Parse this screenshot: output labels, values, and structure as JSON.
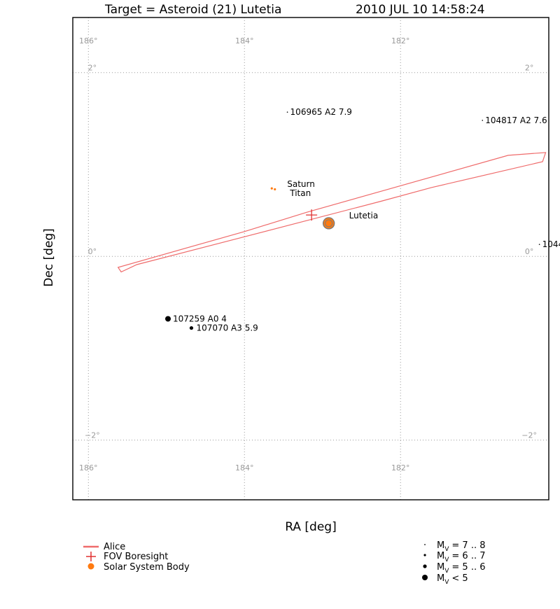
{
  "title": {
    "target": "Target = Asteroid (21) Lutetia",
    "datetime": "2010 JUL 10 14:58:24"
  },
  "axes": {
    "xlabel": "RA [deg]",
    "ylabel": "Dec [deg]",
    "ra_range": [
      186.2,
      180.1
    ],
    "dec_range": [
      -2.65,
      2.6
    ],
    "ra_ticks": [
      {
        "value": 186,
        "label": "186°"
      },
      {
        "value": 184,
        "label": "184°"
      },
      {
        "value": 182,
        "label": "182°"
      }
    ],
    "dec_ticks": [
      {
        "value": 2,
        "label": "2°"
      },
      {
        "value": 0,
        "label": "0°"
      },
      {
        "value": -2,
        "label": "−2°"
      }
    ],
    "grid": "dotted"
  },
  "stars": [
    {
      "ra": 183.45,
      "dec": 1.57,
      "label": "106965 A2 7.9",
      "mag_class": "7-8"
    },
    {
      "ra": 180.95,
      "dec": 1.48,
      "label": "104817 A2 7.6",
      "mag_class": "7-8"
    },
    {
      "ra": 180.22,
      "dec": 0.13,
      "label": "1044",
      "mag_class": "7-8"
    },
    {
      "ra": 184.98,
      "dec": -0.68,
      "label": "107259 A0 4",
      "mag_class": "<5"
    },
    {
      "ra": 184.68,
      "dec": -0.78,
      "label": "107070 A3 5.9",
      "mag_class": "5-6"
    }
  ],
  "bodies": [
    {
      "name": "Saturn",
      "ra": 183.65,
      "dec": 0.74
    },
    {
      "name": "Titan",
      "ra": 183.61,
      "dec": 0.73
    },
    {
      "name": "Lutetia",
      "ra": 182.92,
      "dec": 0.36
    }
  ],
  "boresight": {
    "ra": 183.14,
    "dec": 0.45
  },
  "alice_slit": [
    [
      185.62,
      -0.12
    ],
    [
      184.0,
      0.27
    ],
    [
      183.2,
      0.48
    ],
    [
      182.2,
      0.72
    ],
    [
      180.62,
      1.1
    ],
    [
      180.14,
      1.13
    ],
    [
      180.18,
      1.03
    ],
    [
      181.6,
      0.75
    ],
    [
      182.25,
      0.6
    ],
    [
      184.15,
      0.18
    ],
    [
      185.38,
      -0.09
    ],
    [
      185.58,
      -0.17
    ]
  ],
  "colors": {
    "alice": "#ef6b6b",
    "boresight": "#e03030",
    "body": "#ff7a10",
    "body_edge": "#7a7a7a",
    "grid": "#9a9a9a"
  },
  "legend": {
    "items": [
      {
        "label": "Alice",
        "symbol": "line"
      },
      {
        "label": "FOV Boresight",
        "symbol": "plus"
      },
      {
        "label": "Solar System Body",
        "symbol": "dot"
      }
    ],
    "magnitudes": [
      {
        "label": "M",
        "sub": "V",
        "range": "= 7 .. 8"
      },
      {
        "label": "M",
        "sub": "V",
        "range": "= 6 .. 7"
      },
      {
        "label": "M",
        "sub": "V",
        "range": "= 5 .. 6"
      },
      {
        "label": "M",
        "sub": "V",
        "range": "< 5"
      }
    ]
  }
}
